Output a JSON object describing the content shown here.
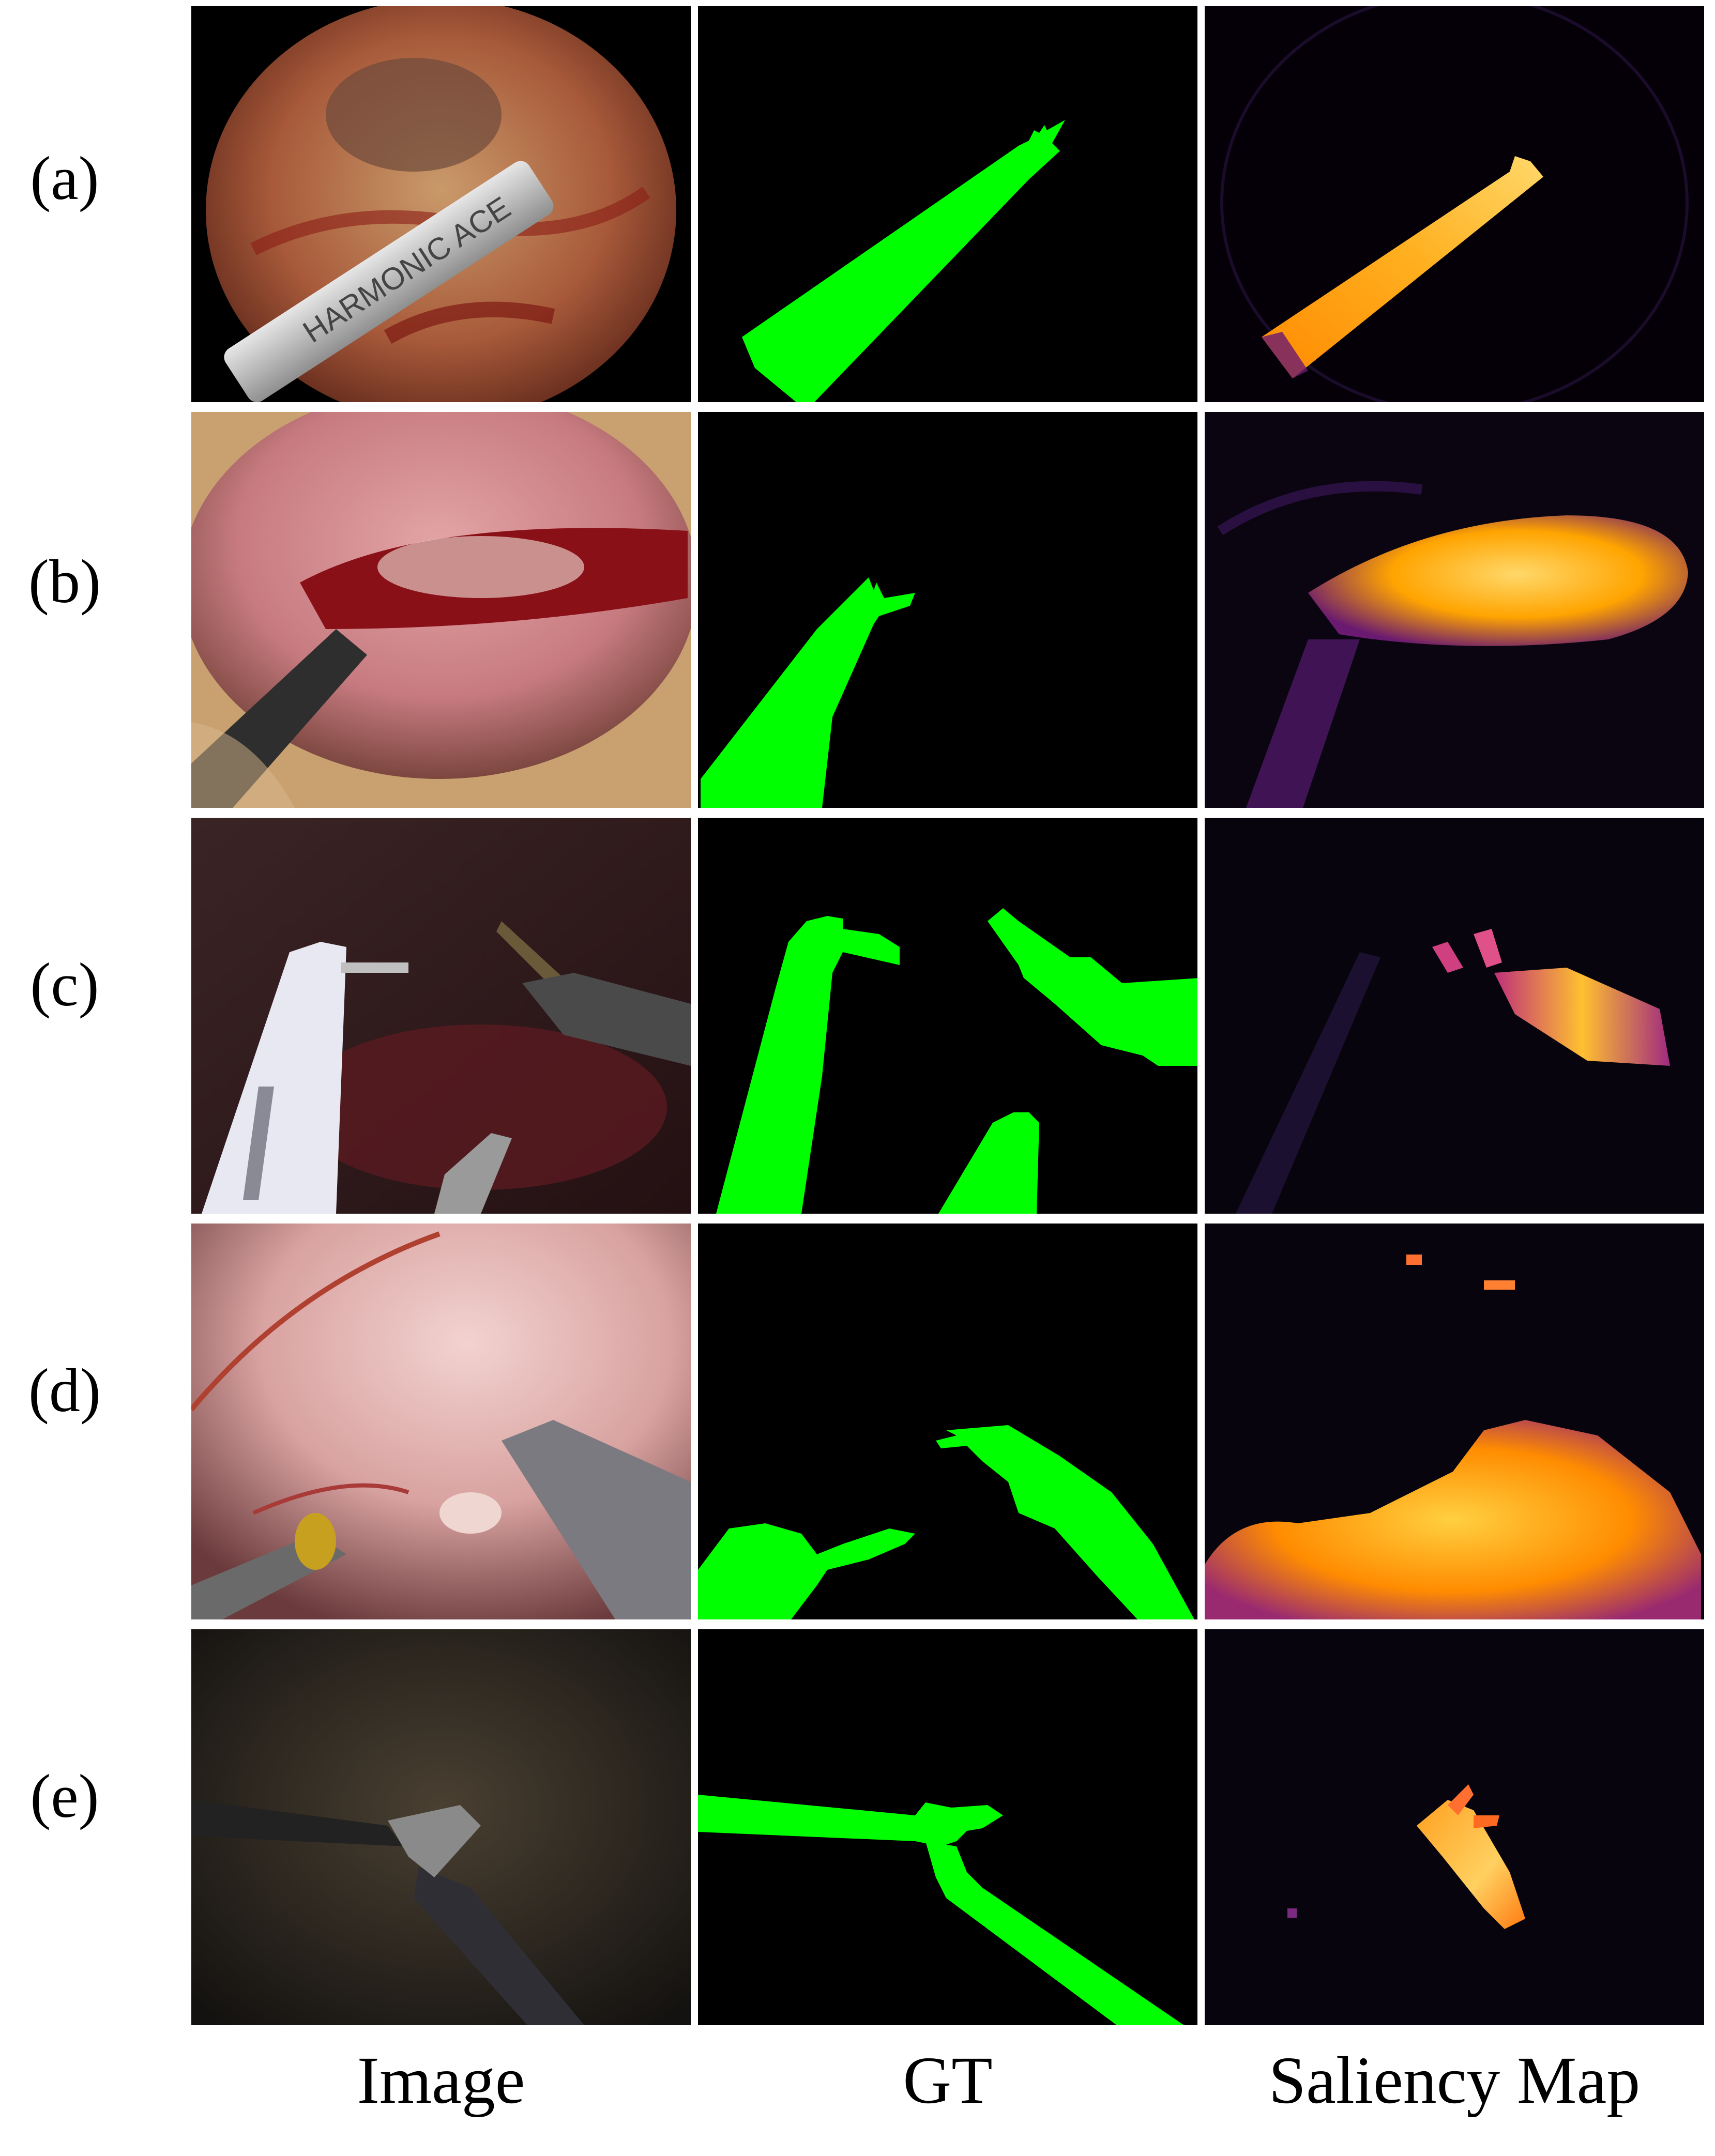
{
  "rows": [
    {
      "label": "(a)"
    },
    {
      "label": "(b)"
    },
    {
      "label": "(c)"
    },
    {
      "label": "(d)"
    },
    {
      "label": "(e)"
    }
  ],
  "columns": [
    {
      "label": "Image"
    },
    {
      "label": "GT"
    },
    {
      "label": "Saliency Map"
    }
  ],
  "instrument_text": "HARMONIC ACE",
  "colors": {
    "mask": "#00ff00",
    "background": "#000000",
    "saliency_high": "#ffd23a",
    "saliency_low": "#4a1060"
  }
}
